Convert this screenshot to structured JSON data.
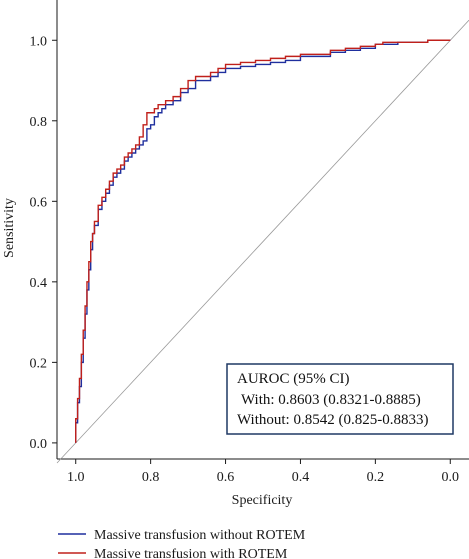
{
  "chart_data": {
    "type": "line",
    "xlabel": "Specificity",
    "ylabel": "Sensitivity",
    "xlim": [
      1.05,
      -0.05
    ],
    "ylim": [
      -0.04,
      1.1
    ],
    "x_reversed": true,
    "x_ticks": [
      "1.0",
      "0.8",
      "0.6",
      "0.4",
      "0.2",
      "0.0"
    ],
    "x_tick_values": [
      1.0,
      0.8,
      0.6,
      0.4,
      0.2,
      0.0
    ],
    "y_ticks": [
      "0.0",
      "0.2",
      "0.4",
      "0.6",
      "0.8",
      "1.0"
    ],
    "y_tick_values": [
      0.0,
      0.2,
      0.4,
      0.6,
      0.8,
      1.0
    ],
    "grid": false,
    "reference_line": "diagonal",
    "series": [
      {
        "name": "Massive transfusion without ROTEM",
        "color": "#1f2f9e",
        "specificity": [
          1.0,
          0.995,
          0.99,
          0.985,
          0.98,
          0.975,
          0.97,
          0.965,
          0.96,
          0.955,
          0.95,
          0.94,
          0.93,
          0.92,
          0.91,
          0.9,
          0.89,
          0.88,
          0.87,
          0.86,
          0.85,
          0.84,
          0.83,
          0.82,
          0.81,
          0.8,
          0.79,
          0.78,
          0.77,
          0.76,
          0.74,
          0.72,
          0.7,
          0.68,
          0.66,
          0.64,
          0.62,
          0.6,
          0.56,
          0.52,
          0.48,
          0.44,
          0.4,
          0.36,
          0.32,
          0.28,
          0.24,
          0.2,
          0.18,
          0.14,
          0.1,
          0.06,
          0.03,
          0.0
        ],
        "sensitivity": [
          0.0,
          0.05,
          0.1,
          0.14,
          0.2,
          0.26,
          0.32,
          0.38,
          0.43,
          0.48,
          0.52,
          0.54,
          0.58,
          0.6,
          0.62,
          0.64,
          0.66,
          0.67,
          0.68,
          0.7,
          0.71,
          0.72,
          0.73,
          0.74,
          0.75,
          0.78,
          0.79,
          0.81,
          0.82,
          0.83,
          0.84,
          0.85,
          0.87,
          0.88,
          0.9,
          0.9,
          0.91,
          0.92,
          0.93,
          0.935,
          0.94,
          0.945,
          0.95,
          0.96,
          0.96,
          0.97,
          0.975,
          0.98,
          0.99,
          0.99,
          0.995,
          0.995,
          1.0,
          1.0
        ]
      },
      {
        "name": "Massive transfusion with ROTEM",
        "color": "#c0201b",
        "specificity": [
          1.0,
          0.995,
          0.99,
          0.985,
          0.98,
          0.975,
          0.97,
          0.965,
          0.96,
          0.955,
          0.95,
          0.94,
          0.93,
          0.92,
          0.91,
          0.9,
          0.89,
          0.88,
          0.87,
          0.86,
          0.85,
          0.84,
          0.83,
          0.82,
          0.81,
          0.8,
          0.79,
          0.78,
          0.77,
          0.76,
          0.74,
          0.72,
          0.7,
          0.68,
          0.66,
          0.64,
          0.62,
          0.6,
          0.56,
          0.52,
          0.48,
          0.44,
          0.4,
          0.36,
          0.32,
          0.28,
          0.24,
          0.2,
          0.18,
          0.14,
          0.1,
          0.06,
          0.03,
          0.0
        ],
        "sensitivity": [
          0.0,
          0.06,
          0.11,
          0.16,
          0.22,
          0.28,
          0.34,
          0.4,
          0.45,
          0.5,
          0.52,
          0.55,
          0.59,
          0.61,
          0.63,
          0.65,
          0.67,
          0.68,
          0.69,
          0.71,
          0.72,
          0.73,
          0.74,
          0.76,
          0.79,
          0.82,
          0.82,
          0.83,
          0.84,
          0.84,
          0.85,
          0.86,
          0.88,
          0.9,
          0.91,
          0.91,
          0.92,
          0.93,
          0.94,
          0.945,
          0.95,
          0.955,
          0.96,
          0.965,
          0.965,
          0.975,
          0.98,
          0.985,
          0.99,
          0.995,
          0.995,
          0.995,
          1.0,
          1.0
        ]
      }
    ],
    "annotation": {
      "title": "AUROC (95% CI)",
      "line1": "With: 0.8603 (0.8321-0.8885)",
      "line2": "Without: 0.8542 (0.825-0.8833)"
    },
    "legend_position": "bottom"
  }
}
